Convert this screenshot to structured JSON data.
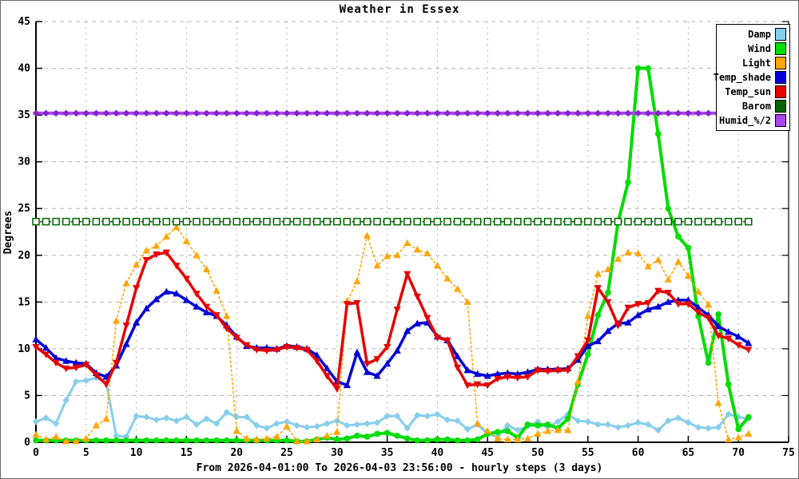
{
  "title": "Weather in Essex",
  "footer_label": "From 2026-04-01:00 To 2026-04-03 23:56:00 - hourly steps (3 days)",
  "chart_data": {
    "type": "line",
    "title": "Weather in Essex",
    "xlabel": "From 2026-04-01:00 To 2026-04-03 23:56:00 - hourly steps (3 days)",
    "ylabel": "Degrees",
    "xlim": [
      0,
      75
    ],
    "ylim": [
      0,
      45
    ],
    "x_ticks": [
      0,
      5,
      10,
      15,
      20,
      25,
      30,
      35,
      40,
      45,
      50,
      55,
      60,
      65,
      70,
      75
    ],
    "y_ticks": [
      0,
      5,
      10,
      15,
      20,
      25,
      30,
      35,
      40,
      45
    ],
    "grid": true,
    "legend_position": "top-right",
    "x": [
      0,
      1,
      2,
      3,
      4,
      5,
      6,
      7,
      8,
      9,
      10,
      11,
      12,
      13,
      14,
      15,
      16,
      17,
      18,
      19,
      20,
      21,
      22,
      23,
      24,
      25,
      26,
      27,
      28,
      29,
      30,
      31,
      32,
      33,
      34,
      35,
      36,
      37,
      38,
      39,
      40,
      41,
      42,
      43,
      44,
      45,
      46,
      47,
      48,
      49,
      50,
      51,
      52,
      53,
      54,
      55,
      56,
      57,
      58,
      59,
      60,
      61,
      62,
      63,
      64,
      65,
      66,
      67,
      68,
      69,
      70,
      71
    ],
    "series": [
      {
        "name": "Damp",
        "color": "#87ceeb",
        "marker": "diamond",
        "line": "solid",
        "width": 3,
        "values": [
          2.2,
          2.6,
          2.0,
          4.5,
          6.5,
          6.6,
          6.9,
          6.4,
          0.7,
          0.6,
          2.8,
          2.7,
          2.4,
          2.6,
          2.3,
          2.7,
          1.9,
          2.5,
          2.0,
          3.2,
          2.7,
          2.7,
          1.8,
          1.5,
          2.0,
          2.2,
          1.8,
          1.6,
          1.7,
          2.0,
          2.3,
          1.8,
          1.9,
          2.0,
          2.1,
          2.8,
          2.8,
          1.5,
          2.9,
          2.8,
          3.0,
          2.4,
          2.3,
          1.4,
          1.9,
          0.9,
          0.6,
          1.8,
          1.3,
          1.7,
          2.2,
          1.6,
          2.2,
          3.0,
          2.3,
          2.2,
          1.9,
          1.9,
          1.6,
          1.8,
          2.1,
          1.9,
          1.3,
          2.3,
          2.6,
          2.1,
          1.6,
          1.5,
          1.6,
          3.0,
          2.7,
          2.5
        ]
      },
      {
        "name": "Wind",
        "color": "#00dd00",
        "marker": "circle",
        "line": "solid",
        "width": 4,
        "values": [
          0.2,
          0.2,
          0.2,
          0.2,
          0.2,
          0.2,
          0.2,
          0.2,
          0.2,
          0.2,
          0.2,
          0.2,
          0.2,
          0.2,
          0.2,
          0.2,
          0.2,
          0.2,
          0.2,
          0.2,
          0.2,
          0.2,
          0.2,
          0.2,
          0.2,
          0.2,
          0.1,
          0.1,
          0.3,
          0.5,
          0.3,
          0.4,
          0.7,
          0.6,
          0.9,
          1.0,
          0.7,
          0.4,
          0.2,
          0.2,
          0.3,
          0.3,
          0.2,
          0.2,
          0.3,
          0.9,
          1.1,
          1.2,
          0.5,
          1.9,
          1.8,
          1.9,
          1.5,
          2.5,
          6.2,
          9.4,
          13.6,
          16.0,
          23.5,
          27.8,
          40.0,
          40.0,
          33.0,
          25.0,
          22.0,
          20.8,
          13.5,
          8.5,
          13.7,
          6.2,
          1.4,
          2.7
        ]
      },
      {
        "name": "Light",
        "color": "#ffa500",
        "marker": "triangle-up",
        "line": "dotted",
        "width": 1.6,
        "values": [
          0.8,
          0.3,
          0.6,
          0.1,
          0.1,
          0.4,
          1.8,
          2.5,
          13.0,
          17.0,
          19.0,
          20.5,
          21.0,
          22.0,
          23.0,
          21.5,
          20.0,
          18.5,
          16.2,
          13.5,
          1.2,
          0.4,
          0.3,
          0.4,
          0.6,
          1.7,
          0.1,
          0.1,
          0.3,
          0.7,
          1.1,
          15.1,
          17.2,
          22.1,
          18.9,
          19.9,
          20.0,
          21.3,
          20.6,
          20.2,
          18.9,
          17.5,
          16.4,
          15.0,
          2.0,
          1.2,
          0.4,
          0.3,
          0.3,
          0.4,
          0.9,
          1.2,
          1.3,
          1.3,
          6.5,
          13.5,
          18.0,
          18.5,
          19.6,
          20.3,
          20.2,
          18.8,
          19.5,
          17.4,
          19.3,
          17.8,
          16.1,
          14.7,
          4.2,
          0.3,
          0.5,
          0.9
        ]
      },
      {
        "name": "Temp_shade",
        "color": "#0000d6",
        "marker": "triangle-up",
        "line": "solid",
        "width": 3.5,
        "values": [
          11.0,
          10.1,
          9.0,
          8.7,
          8.5,
          8.4,
          7.4,
          7.0,
          8.2,
          10.5,
          12.8,
          14.3,
          15.3,
          16.1,
          15.9,
          15.2,
          14.5,
          13.9,
          13.5,
          12.5,
          11.3,
          10.3,
          10.1,
          10.1,
          10.0,
          10.3,
          10.2,
          10.0,
          9.3,
          7.9,
          6.5,
          6.1,
          9.6,
          7.5,
          7.1,
          8.4,
          9.8,
          11.9,
          12.7,
          12.8,
          11.3,
          10.9,
          9.2,
          7.7,
          7.3,
          7.1,
          7.3,
          7.4,
          7.3,
          7.5,
          7.8,
          7.8,
          7.8,
          7.9,
          8.8,
          10.3,
          10.8,
          11.9,
          12.7,
          12.8,
          13.6,
          14.2,
          14.5,
          15.0,
          15.2,
          15.2,
          14.4,
          13.6,
          12.4,
          11.8,
          11.3,
          10.6
        ]
      },
      {
        "name": "Temp_sun",
        "color": "#e60000",
        "marker": "triangle-down",
        "line": "solid",
        "width": 3.5,
        "values": [
          10.2,
          9.4,
          8.5,
          7.9,
          8.0,
          8.3,
          7.2,
          6.2,
          8.5,
          12.5,
          16.5,
          19.5,
          20.1,
          20.3,
          18.9,
          17.5,
          15.9,
          14.5,
          13.6,
          12.2,
          11.2,
          10.4,
          9.9,
          9.8,
          9.9,
          10.2,
          10.1,
          9.9,
          8.7,
          7.1,
          5.7,
          14.8,
          14.9,
          8.4,
          8.9,
          10.2,
          14.2,
          18.0,
          15.6,
          13.3,
          11.2,
          10.9,
          8.0,
          6.1,
          6.2,
          6.1,
          6.8,
          7.0,
          6.9,
          7.0,
          7.7,
          7.6,
          7.7,
          7.7,
          9.2,
          10.9,
          16.5,
          15.0,
          12.5,
          14.4,
          14.8,
          14.9,
          16.2,
          16.0,
          14.8,
          14.8,
          13.9,
          13.3,
          11.4,
          11.1,
          10.4,
          9.9
        ]
      },
      {
        "name": "Barom",
        "color": "#006400",
        "marker": "square-open",
        "line": "dotted",
        "width": 1.6,
        "values": [
          23.6,
          23.6,
          23.6,
          23.6,
          23.6,
          23.6,
          23.6,
          23.6,
          23.6,
          23.6,
          23.6,
          23.6,
          23.6,
          23.6,
          23.6,
          23.6,
          23.6,
          23.6,
          23.6,
          23.6,
          23.6,
          23.6,
          23.6,
          23.6,
          23.6,
          23.6,
          23.6,
          23.6,
          23.6,
          23.6,
          23.6,
          23.6,
          23.6,
          23.6,
          23.6,
          23.6,
          23.6,
          23.6,
          23.6,
          23.6,
          23.6,
          23.6,
          23.6,
          23.6,
          23.6,
          23.6,
          23.6,
          23.6,
          23.6,
          23.6,
          23.6,
          23.6,
          23.6,
          23.6,
          23.6,
          23.6,
          23.6,
          23.6,
          23.6,
          23.6,
          23.6,
          23.6,
          23.6,
          23.6,
          23.6,
          23.6,
          23.6,
          23.6,
          23.6,
          23.6,
          23.6,
          23.6
        ]
      },
      {
        "name": "Humid_%/2",
        "color": "#aa44ee",
        "marker_color": "#8822cc",
        "marker": "diamond",
        "line": "solid",
        "width": 4,
        "values": [
          35.2,
          35.2,
          35.2,
          35.2,
          35.2,
          35.2,
          35.2,
          35.2,
          35.2,
          35.2,
          35.2,
          35.2,
          35.2,
          35.2,
          35.2,
          35.2,
          35.2,
          35.2,
          35.2,
          35.2,
          35.2,
          35.2,
          35.2,
          35.2,
          35.2,
          35.2,
          35.2,
          35.2,
          35.2,
          35.2,
          35.2,
          35.2,
          35.2,
          35.2,
          35.2,
          35.2,
          35.2,
          35.2,
          35.2,
          35.2,
          35.2,
          35.2,
          35.2,
          35.2,
          35.2,
          35.2,
          35.2,
          35.2,
          35.2,
          35.2,
          35.2,
          35.2,
          35.2,
          35.2,
          35.2,
          35.2,
          35.2,
          35.2,
          35.2,
          35.2,
          35.2,
          35.2,
          35.2,
          35.2,
          35.2,
          35.2,
          35.2,
          35.2,
          35.2,
          35.2,
          35.2,
          35.2
        ]
      }
    ]
  }
}
